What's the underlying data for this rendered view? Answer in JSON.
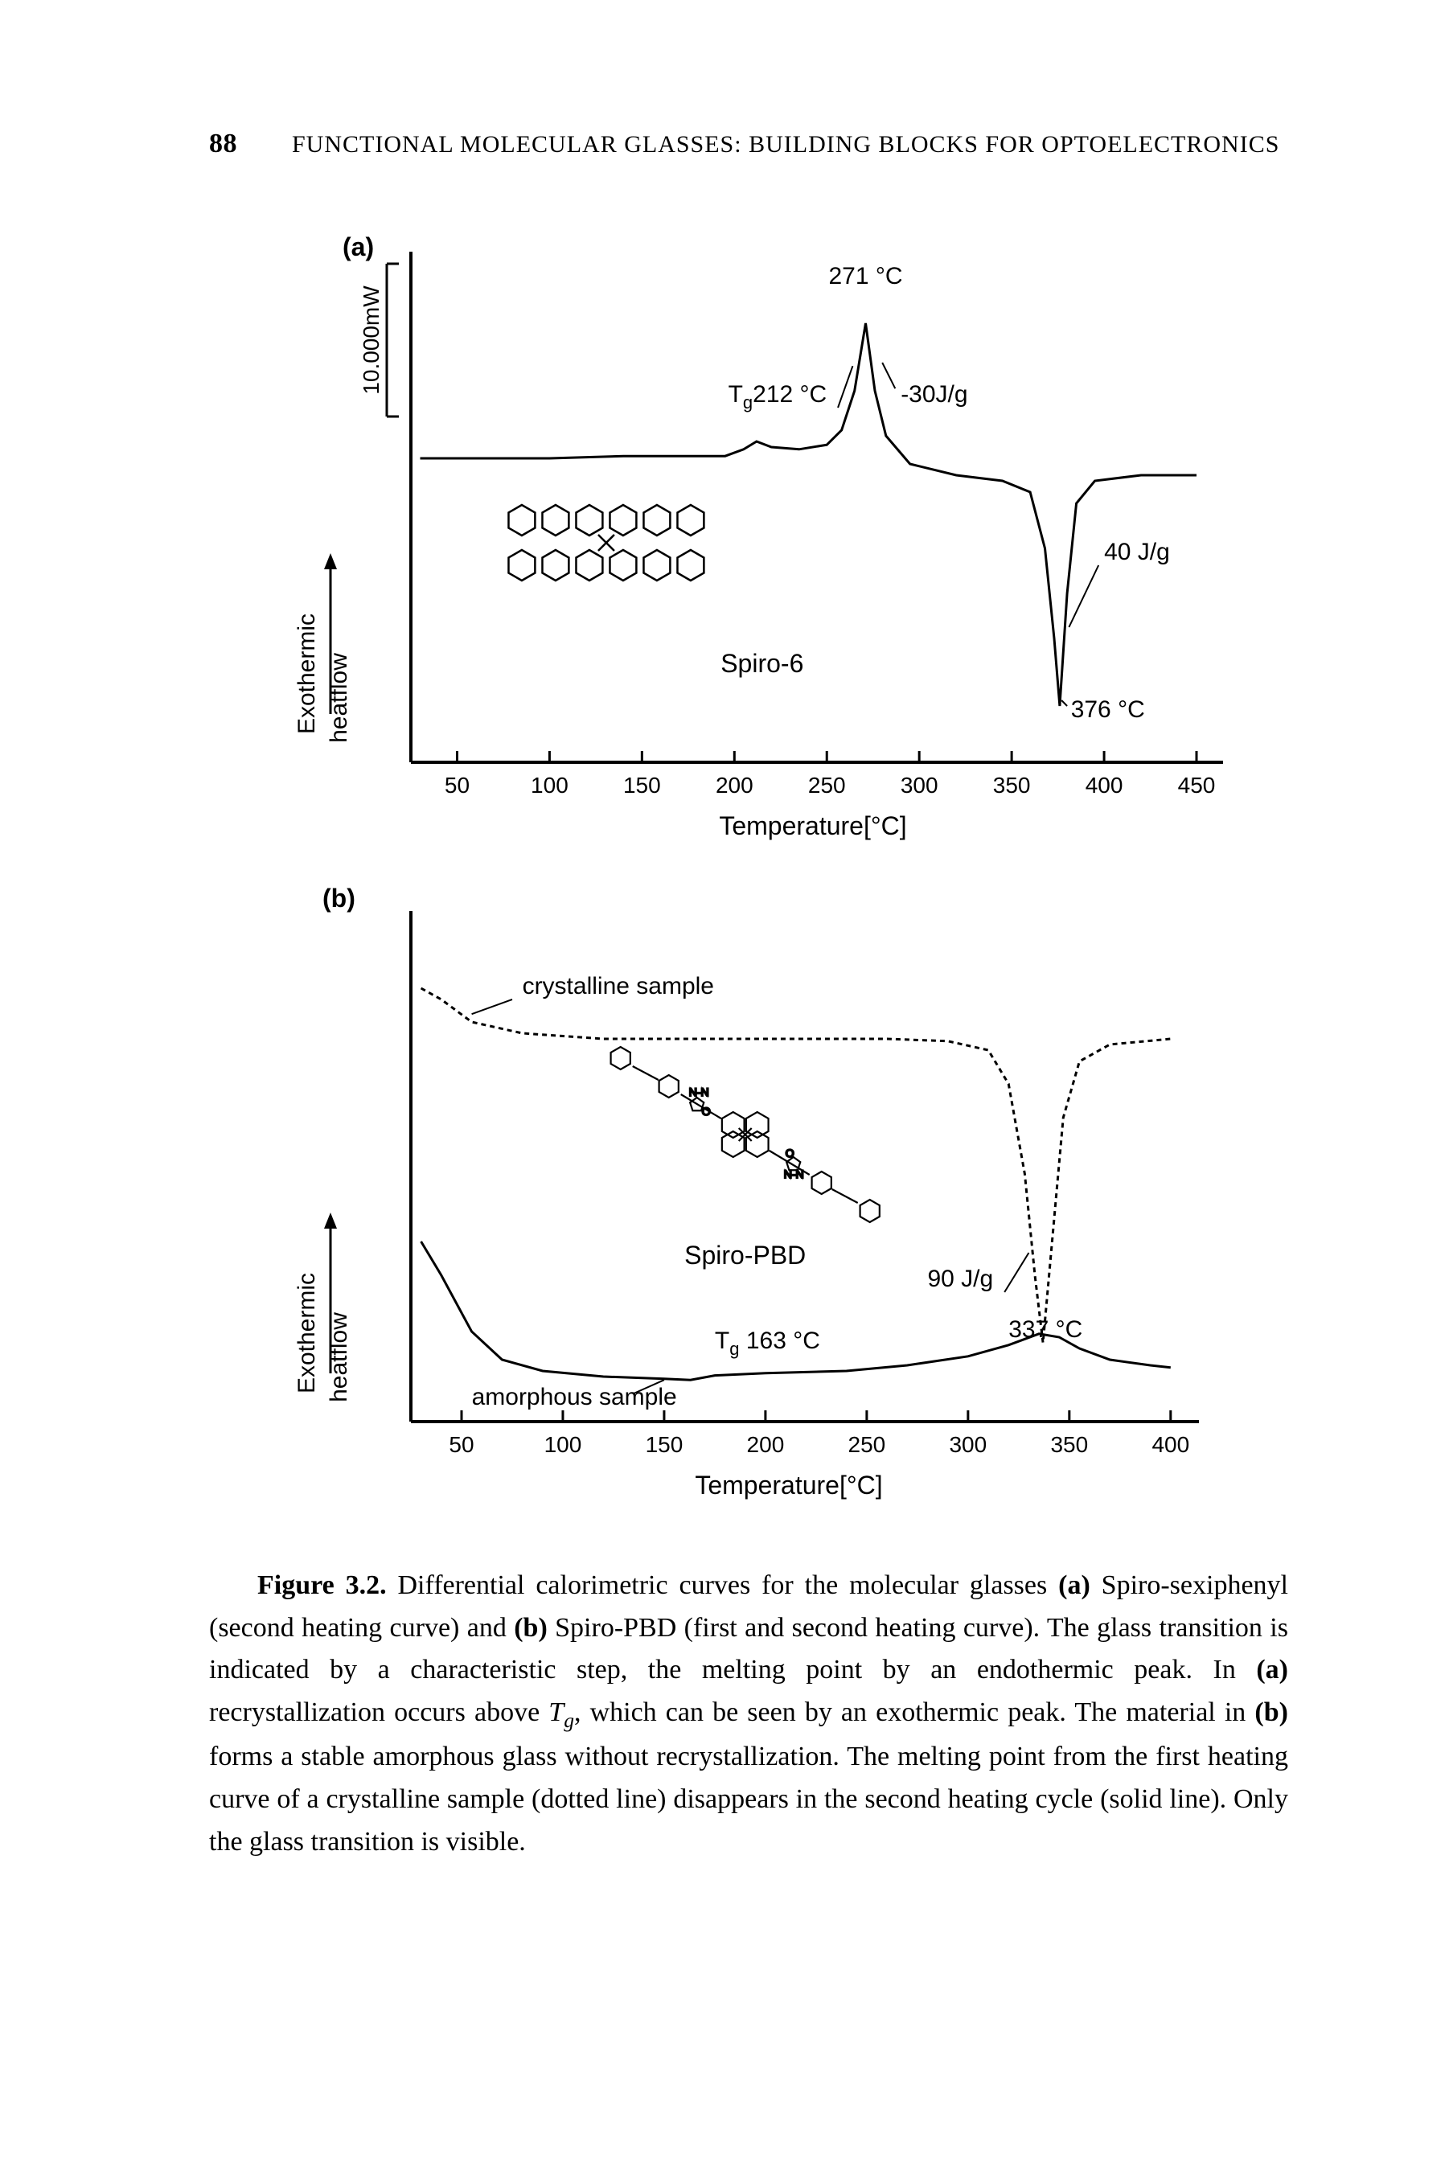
{
  "header": {
    "page_number": "88",
    "running_title": "FUNCTIONAL MOLECULAR GLASSES: BUILDING BLOCKS FOR OPTOELECTRONICS"
  },
  "figure": {
    "panels": {
      "a": {
        "panel_label": "(a)",
        "y_scale_label": "10.000mW",
        "y_axis_label_line1": "Exothermic",
        "y_axis_label_line2": "heatflow",
        "x_axis_label": "Temperature[°C]",
        "x_ticks": [
          50,
          100,
          150,
          200,
          250,
          300,
          350,
          400,
          450
        ],
        "annotations": {
          "peak_temp": "271 °C",
          "tg_label": "T",
          "tg_sub": "g",
          "tg_value": "212 °C",
          "exo_energy": "-30J/g",
          "endo_energy": "40 J/g",
          "endo_temp": "376 °C",
          "compound": "Spiro-6"
        },
        "curve_points": [
          [
            30,
            180
          ],
          [
            60,
            180
          ],
          [
            100,
            180
          ],
          [
            140,
            178
          ],
          [
            170,
            178
          ],
          [
            195,
            178
          ],
          [
            205,
            172
          ],
          [
            212,
            165
          ],
          [
            220,
            170
          ],
          [
            235,
            172
          ],
          [
            250,
            168
          ],
          [
            258,
            155
          ],
          [
            265,
            120
          ],
          [
            271,
            60
          ],
          [
            276,
            120
          ],
          [
            282,
            160
          ],
          [
            295,
            185
          ],
          [
            320,
            195
          ],
          [
            345,
            200
          ],
          [
            360,
            210
          ],
          [
            368,
            260
          ],
          [
            373,
            340
          ],
          [
            376,
            400
          ],
          [
            380,
            300
          ],
          [
            385,
            220
          ],
          [
            395,
            200
          ],
          [
            420,
            195
          ],
          [
            450,
            195
          ]
        ],
        "style": {
          "line_color": "#000000",
          "line_width": 3,
          "axis_color": "#000000",
          "axis_width": 4,
          "font_family": "Arial, Helvetica, sans-serif",
          "tick_fontsize": 28,
          "label_fontsize": 30,
          "annotation_fontsize": 30
        }
      },
      "b": {
        "panel_label": "(b)",
        "y_axis_label_line1": "Exothermic",
        "y_axis_label_line2": "heatflow",
        "x_axis_label": "Temperature[°C]",
        "x_ticks": [
          50,
          100,
          150,
          200,
          250,
          300,
          350,
          400
        ],
        "annotations": {
          "crystalline_label": "crystalline sample",
          "amorphous_label": "amorphous sample",
          "compound": "Spiro-PBD",
          "endo_energy": "90 J/g",
          "endo_temp": "337 °C",
          "tg_label": "T",
          "tg_sub": "g",
          "tg_value": " 163 °C"
        },
        "crystalline_curve_points": [
          [
            30,
            65
          ],
          [
            40,
            75
          ],
          [
            55,
            95
          ],
          [
            80,
            105
          ],
          [
            120,
            110
          ],
          [
            170,
            110
          ],
          [
            220,
            110
          ],
          [
            260,
            110
          ],
          [
            290,
            112
          ],
          [
            310,
            120
          ],
          [
            320,
            150
          ],
          [
            328,
            230
          ],
          [
            333,
            320
          ],
          [
            337,
            380
          ],
          [
            341,
            300
          ],
          [
            347,
            180
          ],
          [
            355,
            130
          ],
          [
            370,
            115
          ],
          [
            400,
            110
          ]
        ],
        "amorphous_curve_points": [
          [
            30,
            290
          ],
          [
            40,
            320
          ],
          [
            55,
            370
          ],
          [
            70,
            395
          ],
          [
            90,
            405
          ],
          [
            120,
            410
          ],
          [
            150,
            412
          ],
          [
            163,
            413
          ],
          [
            175,
            409
          ],
          [
            200,
            407
          ],
          [
            240,
            405
          ],
          [
            270,
            400
          ],
          [
            300,
            392
          ],
          [
            320,
            382
          ],
          [
            335,
            372
          ],
          [
            345,
            375
          ],
          [
            355,
            385
          ],
          [
            370,
            395
          ],
          [
            390,
            400
          ],
          [
            400,
            402
          ]
        ],
        "style": {
          "crystalline_dash": "6,5",
          "line_color": "#000000",
          "line_width": 3,
          "axis_color": "#000000",
          "axis_width": 4,
          "font_family": "Arial, Helvetica, sans-serif",
          "tick_fontsize": 28,
          "label_fontsize": 30,
          "annotation_fontsize": 30
        }
      }
    }
  },
  "caption": {
    "label": "Figure 3.2.",
    "text_parts": {
      "p1": " Differential calorimetric curves for the molecular glasses ",
      "bold_a": "(a)",
      "p2": " Spiro-sexiphenyl (second heating curve) and ",
      "bold_b1": "(b)",
      "p3": " Spiro-PBD (first and second heating curve). The glass transition is indicated by a characteristic step, the melting point by an endothermic peak. In ",
      "bold_a2": "(a)",
      "p4": " recrystallization occurs above ",
      "tg_T": "T",
      "tg_g": "g",
      "p5": ", which can be seen by an exothermic peak. The material in ",
      "bold_b2": "(b)",
      "p6": " forms a stable amorphous glass without recrystallization. The melting point from the first heating curve of a crystalline sample (dotted line) disappears in the second heating cycle (solid line). Only the glass transition is visible."
    }
  }
}
